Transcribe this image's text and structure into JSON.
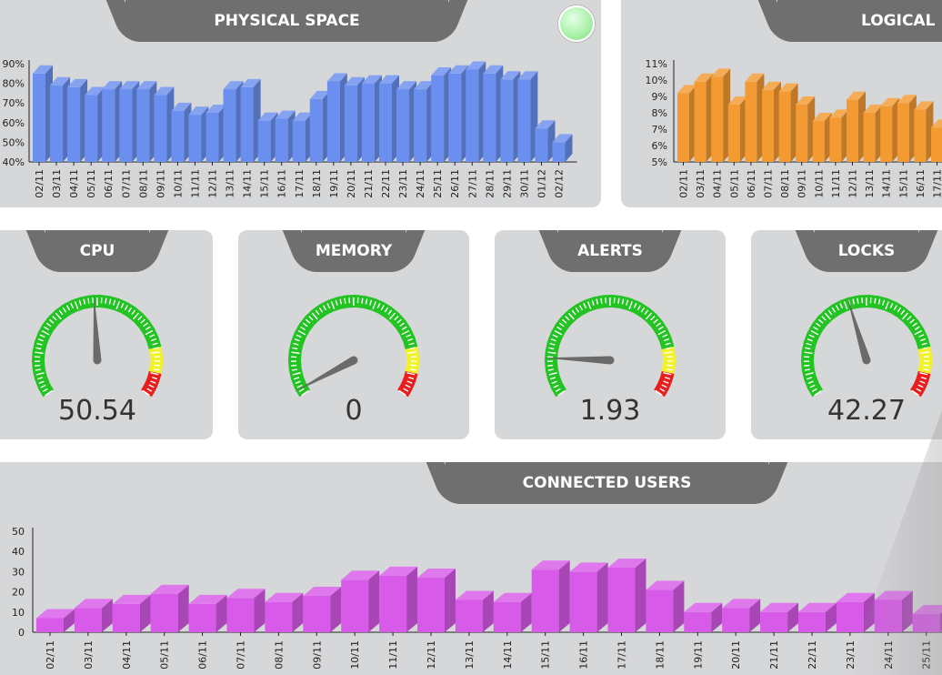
{
  "colors": {
    "physical_bar": "#6b8fef",
    "logical_bar": "#f39a32",
    "users_bar": "#d85ae8",
    "tab_bg": "#6f6f6f",
    "panel_bg": "#d6d7d9",
    "gauge_green": "#22c322",
    "gauge_yellow": "#f2f22a",
    "gauge_red": "#e81e1e",
    "status_light": "#a8f0a8"
  },
  "panels": {
    "physical_space": {
      "title": "PHYSICAL SPACE"
    },
    "logical": {
      "title": "LOGICAL"
    },
    "cpu": {
      "title": "CPU"
    },
    "memory": {
      "title": "MEMORY"
    },
    "alerts": {
      "title": "ALERTS"
    },
    "locks": {
      "title": "LOCKS"
    },
    "connected_users": {
      "title": "CONNECTED USERS"
    }
  },
  "gauges": [
    {
      "key": "cpu",
      "value_text": "50.54",
      "needle_deg": 93
    },
    {
      "key": "memory",
      "value_text": "0",
      "needle_deg": 208
    },
    {
      "key": "alerts",
      "value_text": "1.93",
      "needle_deg": 178
    },
    {
      "key": "locks",
      "value_text": "42.27",
      "needle_deg": 107
    }
  ],
  "icons": {
    "status_light": "status-light-icon"
  },
  "chart_data": [
    {
      "id": "physical",
      "type": "bar",
      "categories": [
        "02/11",
        "03/11",
        "04/11",
        "05/11",
        "06/11",
        "07/11",
        "08/11",
        "09/11",
        "10/11",
        "11/11",
        "12/11",
        "13/11",
        "14/11",
        "15/11",
        "16/11",
        "17/11",
        "18/11",
        "19/11",
        "20/11",
        "21/11",
        "22/11",
        "23/11",
        "24/11",
        "25/11",
        "26/11",
        "27/11",
        "28/11",
        "29/11",
        "30/11",
        "01/12",
        "02/12"
      ],
      "values": [
        85,
        79,
        78,
        74,
        77,
        77,
        77,
        74,
        66,
        64,
        65,
        77,
        78,
        61,
        62,
        61,
        72,
        81,
        79,
        80,
        80,
        77,
        77,
        84,
        85,
        87,
        85,
        82,
        82,
        57,
        50
      ],
      "ylim": [
        40,
        90
      ],
      "yticks": [
        40,
        50,
        60,
        70,
        80,
        90
      ],
      "ytick_labels": [
        "40%",
        "50%",
        "60%",
        "70%",
        "80%",
        "90%"
      ],
      "title": "",
      "xlabel": "",
      "ylabel": ""
    },
    {
      "id": "logical",
      "type": "bar",
      "categories": [
        "02/11",
        "03/11",
        "04/11",
        "05/11",
        "06/11",
        "07/11",
        "08/11",
        "09/11",
        "10/11",
        "11/11",
        "12/11",
        "13/11",
        "14/11",
        "15/11",
        "16/11",
        "17/11"
      ],
      "values": [
        9.2,
        9.9,
        10.2,
        8.5,
        9.9,
        9.4,
        9.3,
        8.5,
        7.5,
        7.7,
        8.8,
        8.0,
        8.4,
        8.6,
        8.2,
        7.1
      ],
      "ylim": [
        5,
        11
      ],
      "yticks": [
        5,
        6,
        7,
        8,
        9,
        10,
        11
      ],
      "ytick_labels": [
        "5%",
        "6%",
        "7%",
        "8%",
        "9%",
        "10%",
        "11%"
      ],
      "title": "",
      "xlabel": "",
      "ylabel": ""
    },
    {
      "id": "users",
      "type": "bar",
      "categories": [
        "02/11",
        "03/11",
        "04/11",
        "05/11",
        "06/11",
        "07/11",
        "08/11",
        "09/11",
        "10/11",
        "11/11",
        "12/11",
        "13/11",
        "14/11",
        "15/11",
        "16/11",
        "17/11",
        "18/11",
        "19/11",
        "20/11",
        "21/11",
        "22/11",
        "23/11",
        "24/11",
        "25/11"
      ],
      "values": [
        7,
        12,
        14,
        19,
        14,
        17,
        15,
        18,
        26,
        28,
        27,
        16,
        15,
        31,
        30,
        32,
        21,
        10,
        12,
        10,
        10,
        15,
        16,
        9
      ],
      "ylim": [
        0,
        50
      ],
      "yticks": [
        0,
        10,
        20,
        30,
        40,
        50
      ],
      "ytick_labels": [
        "0",
        "10",
        "20",
        "30",
        "40",
        "50"
      ],
      "title": "",
      "xlabel": "",
      "ylabel": ""
    }
  ]
}
